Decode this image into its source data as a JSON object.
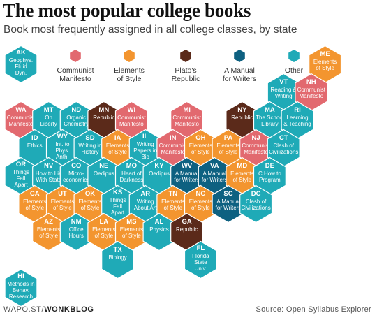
{
  "title": "The most popular college books",
  "subtitle": "Book most frequently assigned in all college classes, by state",
  "credit_prefix": "WAPO.ST/",
  "credit_brand": "WONKBLOG",
  "source": "Source: Open Syllabus Explorer",
  "colors": {
    "communist": "#e2696f",
    "elements": "#f3952f",
    "plato": "#5b2a1a",
    "manual": "#0e6181",
    "other": "#1faab7"
  },
  "legend": [
    {
      "key": "communist",
      "lines": [
        "Communist",
        "Manifesto"
      ]
    },
    {
      "key": "elements",
      "lines": [
        "Elements",
        "of Style"
      ]
    },
    {
      "key": "plato",
      "lines": [
        "Plato's",
        "Republic"
      ]
    },
    {
      "key": "manual",
      "lines": [
        "A Manual",
        "for Writers"
      ]
    },
    {
      "key": "other",
      "lines": [
        "Other"
      ]
    }
  ],
  "states": [
    {
      "abbr": "AK",
      "lines": [
        "Geophys.",
        "Fluid",
        "Dyn."
      ],
      "cat": "other",
      "col": 0,
      "row": 0
    },
    {
      "abbr": "ME",
      "lines": [
        "Elements",
        "of Style"
      ],
      "cat": "elements",
      "col": 11,
      "row": 0
    },
    {
      "abbr": "VT",
      "lines": [
        "Reading &",
        "Writing"
      ],
      "cat": "other",
      "col": 9,
      "row": 1
    },
    {
      "abbr": "NH",
      "lines": [
        "Communist",
        "Manifesto"
      ],
      "cat": "communist",
      "col": 10,
      "row": 1
    },
    {
      "abbr": "WA",
      "lines": [
        "Communist",
        "Manifesto"
      ],
      "cat": "communist",
      "col": 0,
      "row": 2
    },
    {
      "abbr": "MT",
      "lines": [
        "On",
        "Liberty"
      ],
      "cat": "other",
      "col": 1,
      "row": 2
    },
    {
      "abbr": "ND",
      "lines": [
        "Organic",
        "Chemistry"
      ],
      "cat": "other",
      "col": 2,
      "row": 2
    },
    {
      "abbr": "MN",
      "lines": [
        "Republic"
      ],
      "cat": "plato",
      "col": 3,
      "row": 2
    },
    {
      "abbr": "WI",
      "lines": [
        "Communist",
        "Manifesto"
      ],
      "cat": "communist",
      "col": 4,
      "row": 2
    },
    {
      "abbr": "MI",
      "lines": [
        "Communist",
        "Manifesto"
      ],
      "cat": "communist",
      "col": 6,
      "row": 2
    },
    {
      "abbr": "NY",
      "lines": [
        "Republic"
      ],
      "cat": "plato",
      "col": 8,
      "row": 2
    },
    {
      "abbr": "MA",
      "lines": [
        "The School",
        "Library"
      ],
      "cat": "other",
      "col": 9,
      "row": 2
    },
    {
      "abbr": "RI",
      "lines": [
        "Learning",
        "& Teaching"
      ],
      "cat": "other",
      "col": 10,
      "row": 2
    },
    {
      "abbr": "ID",
      "lines": [
        "Ethics"
      ],
      "cat": "other",
      "col": 0,
      "row": 3
    },
    {
      "abbr": "WY",
      "lines": [
        "Int. to",
        "Phys.",
        "Anth."
      ],
      "cat": "other",
      "col": 1,
      "row": 3
    },
    {
      "abbr": "SD",
      "lines": [
        "Writing in",
        "History"
      ],
      "cat": "other",
      "col": 2,
      "row": 3
    },
    {
      "abbr": "IA",
      "lines": [
        "Elements",
        "of Style"
      ],
      "cat": "elements",
      "col": 3,
      "row": 3
    },
    {
      "abbr": "IL",
      "lines": [
        "Writing",
        "Papers in",
        "Bio"
      ],
      "cat": "other",
      "col": 4,
      "row": 3
    },
    {
      "abbr": "IN",
      "lines": [
        "Communist",
        "Manifesto"
      ],
      "cat": "communist",
      "col": 5,
      "row": 3
    },
    {
      "abbr": "OH",
      "lines": [
        "Elements",
        "of Style"
      ],
      "cat": "elements",
      "col": 6,
      "row": 3
    },
    {
      "abbr": "PA",
      "lines": [
        "Elements",
        "of Style"
      ],
      "cat": "elements",
      "col": 7,
      "row": 3
    },
    {
      "abbr": "NJ",
      "lines": [
        "Communist",
        "Manifesto"
      ],
      "cat": "communist",
      "col": 8,
      "row": 3
    },
    {
      "abbr": "CT",
      "lines": [
        "Clash of",
        "Civilizations"
      ],
      "cat": "other",
      "col": 9,
      "row": 3
    },
    {
      "abbr": "OR",
      "lines": [
        "Things",
        "Fall",
        "Apart"
      ],
      "cat": "other",
      "col": 0,
      "row": 4
    },
    {
      "abbr": "NV",
      "lines": [
        "How to Lie",
        "With Stats"
      ],
      "cat": "other",
      "col": 1,
      "row": 4
    },
    {
      "abbr": "CO",
      "lines": [
        "Micro-",
        "economics"
      ],
      "cat": "other",
      "col": 2,
      "row": 4
    },
    {
      "abbr": "NE",
      "lines": [
        "Oedipus"
      ],
      "cat": "other",
      "col": 3,
      "row": 4
    },
    {
      "abbr": "MO",
      "lines": [
        "Heart of",
        "Darkness"
      ],
      "cat": "other",
      "col": 4,
      "row": 4
    },
    {
      "abbr": "KY",
      "lines": [
        "Oedipus"
      ],
      "cat": "other",
      "col": 5,
      "row": 4
    },
    {
      "abbr": "WV",
      "lines": [
        "A Manual",
        "for Writers"
      ],
      "cat": "manual",
      "col": 6,
      "row": 4
    },
    {
      "abbr": "VA",
      "lines": [
        "A Manual",
        "for Writers"
      ],
      "cat": "manual",
      "col": 7,
      "row": 4
    },
    {
      "abbr": "MD",
      "lines": [
        "Elements",
        "of Style"
      ],
      "cat": "elements",
      "col": 8,
      "row": 4
    },
    {
      "abbr": "DE",
      "lines": [
        "C How to",
        "Program"
      ],
      "cat": "other",
      "col": 9,
      "row": 4
    },
    {
      "abbr": "CA",
      "lines": [
        "Elements",
        "of Style"
      ],
      "cat": "elements",
      "col": 0,
      "row": 5
    },
    {
      "abbr": "UT",
      "lines": [
        "Elements",
        "of Style"
      ],
      "cat": "elements",
      "col": 1,
      "row": 5
    },
    {
      "abbr": "OK",
      "lines": [
        "Elements",
        "of Style"
      ],
      "cat": "elements",
      "col": 2,
      "row": 5
    },
    {
      "abbr": "KS",
      "lines": [
        "Things",
        "Fall",
        "Apart"
      ],
      "cat": "other",
      "col": 3,
      "row": 5
    },
    {
      "abbr": "AR",
      "lines": [
        "Writing",
        "About Art"
      ],
      "cat": "other",
      "col": 4,
      "row": 5
    },
    {
      "abbr": "TN",
      "lines": [
        "Elements",
        "of Style"
      ],
      "cat": "elements",
      "col": 5,
      "row": 5
    },
    {
      "abbr": "NC",
      "lines": [
        "Elements",
        "of Style"
      ],
      "cat": "elements",
      "col": 6,
      "row": 5
    },
    {
      "abbr": "SC",
      "lines": [
        "A Manual",
        "for Writers"
      ],
      "cat": "manual",
      "col": 7,
      "row": 5
    },
    {
      "abbr": "DC",
      "lines": [
        "Clash of",
        "Civilizations"
      ],
      "cat": "other",
      "col": 8,
      "row": 5
    },
    {
      "abbr": "AZ",
      "lines": [
        "Elements",
        "of Style"
      ],
      "cat": "elements",
      "col": 1,
      "row": 6
    },
    {
      "abbr": "NM",
      "lines": [
        "Office",
        "Hours"
      ],
      "cat": "other",
      "col": 2,
      "row": 6
    },
    {
      "abbr": "LA",
      "lines": [
        "Elements",
        "of Style"
      ],
      "cat": "elements",
      "col": 3,
      "row": 6
    },
    {
      "abbr": "MS",
      "lines": [
        "Elements",
        "of Style"
      ],
      "cat": "elements",
      "col": 4,
      "row": 6
    },
    {
      "abbr": "AL",
      "lines": [
        "Physics"
      ],
      "cat": "other",
      "col": 5,
      "row": 6
    },
    {
      "abbr": "GA",
      "lines": [
        "Republic"
      ],
      "cat": "plato",
      "col": 6,
      "row": 6
    },
    {
      "abbr": "TX",
      "lines": [
        "Biology"
      ],
      "cat": "other",
      "col": 3,
      "row": 7
    },
    {
      "abbr": "FL",
      "lines": [
        "Florida",
        "State",
        "Univ."
      ],
      "cat": "other",
      "col": 6,
      "row": 7
    },
    {
      "abbr": "HI",
      "lines": [
        "Methods in",
        "Behav.",
        "Research"
      ],
      "cat": "other",
      "col": 0,
      "row": 8
    }
  ]
}
